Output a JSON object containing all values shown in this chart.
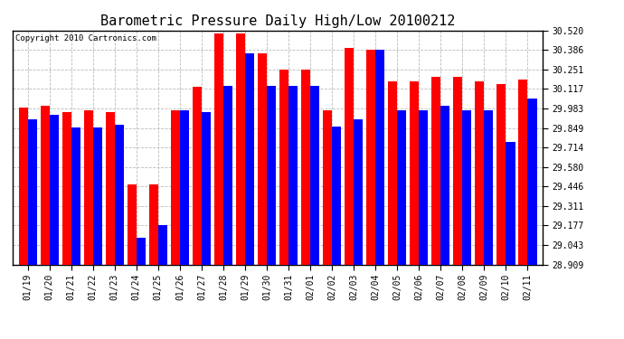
{
  "title": "Barometric Pressure Daily High/Low 20100212",
  "copyright": "Copyright 2010 Cartronics.com",
  "dates": [
    "01/19",
    "01/20",
    "01/21",
    "01/22",
    "01/23",
    "01/24",
    "01/25",
    "01/26",
    "01/27",
    "01/28",
    "01/29",
    "01/30",
    "01/31",
    "02/01",
    "02/02",
    "02/03",
    "02/04",
    "02/05",
    "02/06",
    "02/07",
    "02/08",
    "02/09",
    "02/10",
    "02/11"
  ],
  "highs": [
    29.99,
    30.0,
    29.96,
    29.97,
    29.96,
    29.46,
    29.46,
    29.97,
    30.13,
    30.5,
    30.5,
    30.36,
    30.25,
    30.25,
    29.97,
    30.4,
    30.39,
    30.17,
    30.17,
    30.2,
    30.2,
    30.17,
    30.15,
    30.18
  ],
  "lows": [
    29.91,
    29.94,
    29.85,
    29.85,
    29.87,
    29.09,
    29.18,
    29.97,
    29.96,
    30.14,
    30.36,
    30.14,
    30.14,
    30.14,
    29.86,
    29.91,
    30.39,
    29.97,
    29.97,
    30.0,
    29.97,
    29.97,
    29.75,
    30.05
  ],
  "yticks": [
    28.909,
    29.043,
    29.177,
    29.311,
    29.446,
    29.58,
    29.714,
    29.849,
    29.983,
    30.117,
    30.251,
    30.386,
    30.52
  ],
  "ymin": 28.909,
  "ymax": 30.52,
  "bar_width": 0.42,
  "high_color": "#FF0000",
  "low_color": "#0000FF",
  "bg_color": "#FFFFFF",
  "plot_bg_color": "#FFFFFF",
  "grid_color": "#BBBBBB",
  "title_fontsize": 11,
  "tick_fontsize": 7,
  "copyright_fontsize": 6.5
}
